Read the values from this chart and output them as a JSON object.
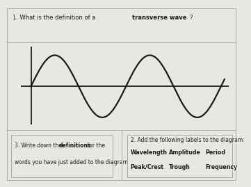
{
  "background_color": "#e8e8e3",
  "box_color": "#ffffff",
  "border_color": "#aaaaaa",
  "wave_color": "#1a1a1a",
  "text_color": "#1a1a1a",
  "q1_normal": "1. What is the definition of a ",
  "q1_bold": "transverse wave",
  "q1_end": "?",
  "q2_title": "2. Add the following labels to the diagram:",
  "q2_row1": [
    "Wavelength",
    "Amplitude",
    "Period"
  ],
  "q2_row2": [
    "Peak/Crest",
    "Trough",
    "Frequency"
  ],
  "q3_normal1": "3. Write down the ",
  "q3_bold": "definitions",
  "q3_normal2": " for the",
  "q3_line2": "words you have just added to the diagram.",
  "wave_lw": 1.6,
  "axis_lw": 1.3,
  "vline_lw": 1.3,
  "fontsize_main": 6.0,
  "fontsize_q2title": 5.5
}
